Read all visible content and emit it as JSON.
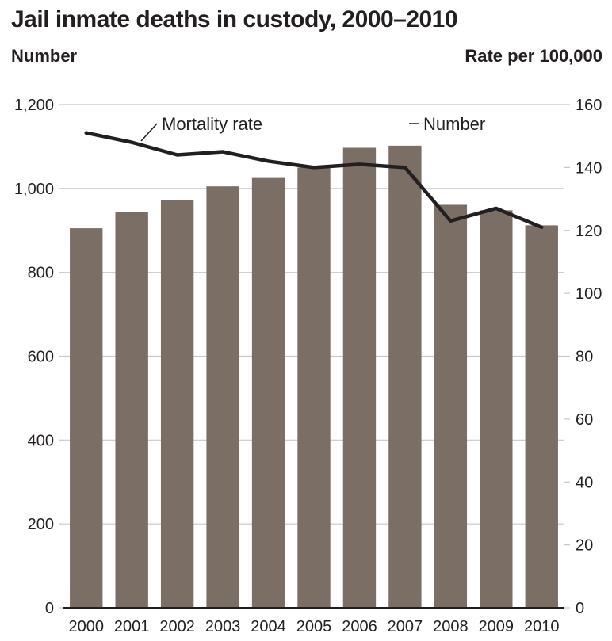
{
  "chart_data": {
    "type": "bar",
    "title": "Jail inmate deaths in custody, 2000–2010",
    "categories": [
      "2000",
      "2001",
      "2002",
      "2003",
      "2004",
      "2005",
      "2006",
      "2007",
      "2008",
      "2009",
      "2010"
    ],
    "series": [
      {
        "name": "Number",
        "type": "bar",
        "axis": "left",
        "values": [
          905,
          944,
          972,
          1005,
          1025,
          1050,
          1097,
          1102,
          961,
          948,
          912
        ]
      },
      {
        "name": "Mortality rate",
        "type": "line",
        "axis": "right",
        "values": [
          151,
          148,
          144,
          145,
          142,
          140,
          141,
          140,
          123,
          127,
          121
        ]
      }
    ],
    "ylabel": "Number",
    "ylabel_right": "Rate per 100,000",
    "ylim": [
      0,
      1200
    ],
    "ylim_right": [
      0,
      160
    ],
    "yticks": [
      {
        "value": 0,
        "label": "0"
      },
      {
        "value": 200,
        "label": "200"
      },
      {
        "value": 400,
        "label": "400"
      },
      {
        "value": 600,
        "label": "600"
      },
      {
        "value": 800,
        "label": "800"
      },
      {
        "value": 1000,
        "label": "1,000"
      },
      {
        "value": 1200,
        "label": "1,200"
      }
    ],
    "yticks_right": [
      {
        "value": 0,
        "label": "0"
      },
      {
        "value": 20,
        "label": "20"
      },
      {
        "value": 40,
        "label": "40"
      },
      {
        "value": 60,
        "label": "60"
      },
      {
        "value": 80,
        "label": "80"
      },
      {
        "value": 100,
        "label": "100"
      },
      {
        "value": 120,
        "label": "120"
      },
      {
        "value": 140,
        "label": "140"
      },
      {
        "value": 160,
        "label": "160"
      }
    ],
    "annotations": [
      "Mortality rate",
      "Number"
    ],
    "grid": true,
    "legend": "none",
    "colors": {
      "bar": "#7b6f65",
      "line": "#231f20",
      "grid": "#c8c8c8",
      "axis": "#231f20"
    }
  }
}
